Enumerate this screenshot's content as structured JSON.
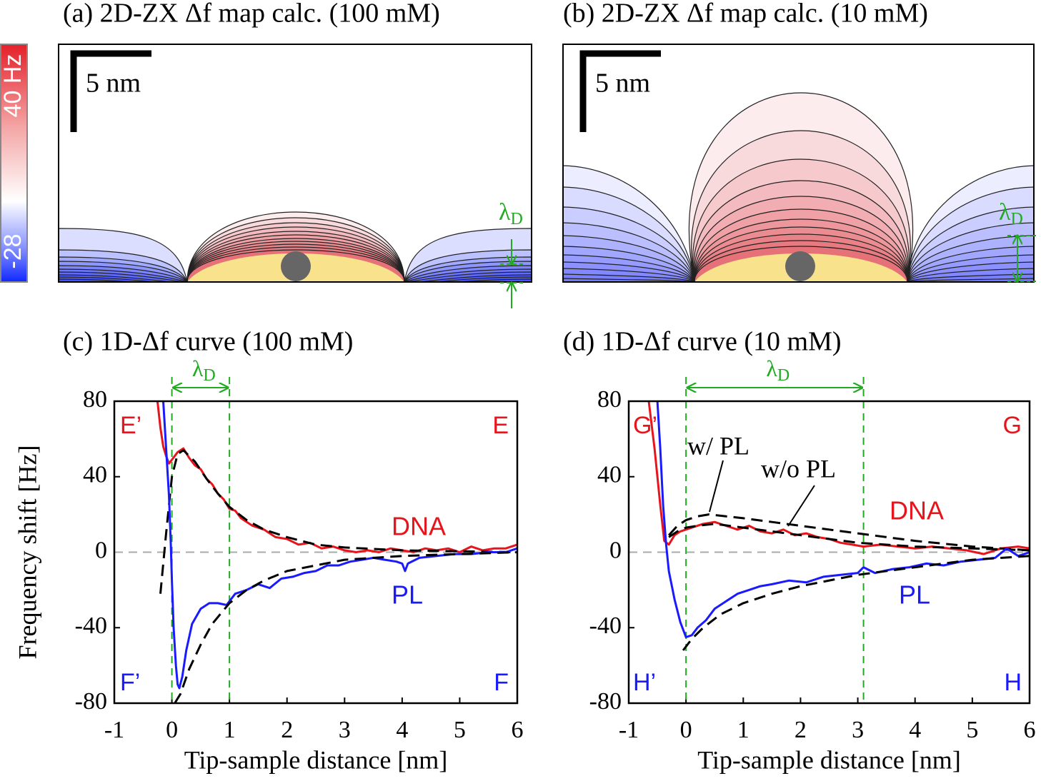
{
  "colorbar": {
    "max_label": "40 Hz",
    "min_label": "-28"
  },
  "maps": [
    {
      "title": "(a) 2D-ZX Δf map calc. (100 mM)",
      "scale_bar": "5 nm",
      "lambda_label": {
        "symbol": "λ",
        "subscript": "D"
      }
    },
    {
      "title": "(b) 2D-ZX Δf map calc. (10 mM)",
      "scale_bar": "5 nm",
      "lambda_label": {
        "symbol": "λ",
        "subscript": "D"
      }
    }
  ],
  "chart_data": [
    {
      "type": "line",
      "title": "(c) 1D-Δf curve (100 mM)",
      "x_label": "Tip-sample distance [nm]",
      "y_label": "Frequency shift [Hz]",
      "xlim": [
        -1,
        6
      ],
      "ylim": [
        -80,
        80
      ],
      "xticks": [
        -1,
        0,
        1,
        2,
        3,
        4,
        5,
        6
      ],
      "yticks": [
        -80,
        -40,
        0,
        40,
        80
      ],
      "hline": 0,
      "hline_color": "#aaaaaa",
      "vlines": [
        0,
        1
      ],
      "vline_color": "#22aa22",
      "lambda_label": {
        "symbol": "λ",
        "subscript": "D"
      },
      "annotations": [
        {
          "text": "E’",
          "color": "#e8141b"
        },
        {
          "text": "E",
          "color": "#e8141b"
        },
        {
          "text": "F’",
          "color": "#1a1aff"
        },
        {
          "text": "F",
          "color": "#1a1aff"
        }
      ],
      "series": [
        {
          "name": "DNA",
          "color": "#e8141b",
          "style": "solid",
          "x": [
            -0.25,
            -0.2,
            -0.15,
            -0.1,
            -0.05,
            0,
            0.1,
            0.2,
            0.3,
            0.4,
            0.5,
            0.6,
            0.7,
            0.8,
            0.9,
            1.0,
            1.1,
            1.2,
            1.4,
            1.6,
            1.8,
            2.0,
            2.2,
            2.4,
            2.6,
            2.8,
            3.0,
            3.2,
            3.4,
            3.6,
            3.8,
            4.0,
            4.2,
            4.4,
            4.6,
            4.8,
            5.0,
            5.2,
            5.4,
            5.6,
            5.8,
            6.0
          ],
          "values": [
            80,
            66,
            56,
            51,
            47,
            49,
            53,
            55,
            50,
            46,
            44,
            39,
            36,
            31,
            28,
            23,
            22,
            18,
            14,
            12,
            8,
            7,
            4,
            5,
            2,
            3,
            1,
            0,
            1,
            0,
            2,
            1,
            0,
            2,
            1,
            2,
            0,
            3,
            1,
            2,
            2,
            4
          ]
        },
        {
          "color": "#000000",
          "style": "dashed",
          "x": [
            -0.2,
            -0.1,
            0,
            0.1,
            0.2,
            0.4,
            0.6,
            0.8,
            1.0,
            1.3,
            1.6,
            2,
            2.5,
            3,
            4,
            5,
            6
          ],
          "values": [
            -22,
            10,
            40,
            52,
            54,
            48,
            39,
            31,
            24,
            17,
            12,
            8,
            4,
            2.5,
            1,
            0.5,
            0
          ]
        },
        {
          "name": "PL",
          "color": "#1a1aff",
          "style": "solid",
          "x": [
            -0.15,
            -0.1,
            -0.05,
            -0.02,
            0,
            0.03,
            0.07,
            0.1,
            0.13,
            0.18,
            0.25,
            0.35,
            0.5,
            0.65,
            0.8,
            0.95,
            1.1,
            1.3,
            1.5,
            1.7,
            1.9,
            2.1,
            2.3,
            2.5,
            2.7,
            2.9,
            3.1,
            3.3,
            3.5,
            3.7,
            3.9,
            4.0,
            4.05,
            4.1,
            4.3,
            4.6,
            4.9,
            5.2,
            5.5,
            5.8,
            6.0
          ],
          "values": [
            80,
            55,
            30,
            5,
            -15,
            -40,
            -60,
            -70,
            -72,
            -66,
            -52,
            -38,
            -30,
            -27,
            -27,
            -28,
            -22,
            -20,
            -17,
            -19,
            -14,
            -13,
            -11,
            -10,
            -7,
            -7,
            -5,
            -4,
            -3,
            -4,
            -5,
            -6,
            -10,
            -6,
            -3,
            -2,
            -1,
            -1,
            0,
            0,
            2
          ]
        },
        {
          "color": "#000000",
          "style": "dashed",
          "x": [
            0.05,
            0.15,
            0.3,
            0.5,
            0.7,
            1.0,
            1.3,
            1.6,
            2,
            2.5,
            3,
            4,
            5,
            6
          ],
          "values": [
            -80,
            -75,
            -62,
            -49,
            -38,
            -27,
            -20,
            -15,
            -10,
            -7,
            -4,
            -2,
            -1,
            0
          ]
        }
      ]
    },
    {
      "type": "line",
      "title": "(d) 1D-Δf curve (10 mM)",
      "x_label": "Tip-sample distance [nm]",
      "xlim": [
        -1,
        6
      ],
      "ylim": [
        -80,
        80
      ],
      "xticks": [
        -1,
        0,
        1,
        2,
        3,
        4,
        5,
        6
      ],
      "yticks": [
        -80,
        -40,
        0,
        40,
        80
      ],
      "hline": 0,
      "hline_color": "#aaaaaa",
      "vlines": [
        0,
        3.1
      ],
      "vline_color": "#22aa22",
      "lambda_label": {
        "symbol": "λ",
        "subscript": "D"
      },
      "annotations": [
        {
          "text": "G’",
          "color": "#e8141b"
        },
        {
          "text": "G",
          "color": "#e8141b"
        },
        {
          "text": "H’",
          "color": "#1a1aff"
        },
        {
          "text": "H",
          "color": "#1a1aff"
        }
      ],
      "series": [
        {
          "name": "DNA",
          "color": "#e8141b",
          "style": "solid",
          "x": [
            -0.65,
            -0.55,
            -0.45,
            -0.38,
            -0.3,
            -0.2,
            -0.1,
            0,
            0.1,
            0.3,
            0.5,
            0.7,
            0.9,
            1.1,
            1.3,
            1.5,
            1.7,
            1.9,
            2.1,
            2.3,
            2.5,
            2.7,
            2.9,
            3.1,
            3.4,
            3.7,
            4.0,
            4.3,
            4.6,
            4.9,
            5.2,
            5.5,
            5.8,
            6.0
          ],
          "values": [
            80,
            55,
            25,
            6,
            4,
            9,
            11,
            12,
            13,
            15,
            16,
            14,
            12,
            14,
            11,
            10,
            12,
            9,
            10,
            8,
            7,
            5,
            4,
            3,
            4,
            3,
            2,
            3,
            2,
            1,
            -1,
            2,
            3,
            2
          ]
        },
        {
          "name": "w/ PL",
          "color": "#000000",
          "style": "dashed",
          "x": [
            -0.3,
            -0.15,
            0,
            0.2,
            0.4,
            0.7,
            1,
            1.5,
            2,
            2.5,
            3,
            3.5,
            4,
            5,
            6
          ],
          "values": [
            9,
            14,
            17,
            19,
            20,
            19,
            18,
            16,
            14,
            12,
            10,
            8,
            6,
            3,
            1
          ]
        },
        {
          "name": "w/o PL",
          "color": "#000000",
          "style": "dashed",
          "x": [
            -0.3,
            -0.15,
            0,
            0.2,
            0.5,
            1,
            1.5,
            2,
            2.5,
            3,
            4,
            5,
            6
          ],
          "values": [
            8,
            11,
            13,
            14,
            15,
            13,
            11,
            9,
            7,
            5,
            3,
            2,
            1
          ]
        },
        {
          "name": "PL",
          "color": "#1a1aff",
          "style": "solid",
          "x": [
            -0.5,
            -0.45,
            -0.4,
            -0.35,
            -0.3,
            -0.2,
            -0.1,
            0,
            0.1,
            0.2,
            0.35,
            0.5,
            0.7,
            0.9,
            1.1,
            1.3,
            1.5,
            1.8,
            2.1,
            2.4,
            2.7,
            3.0,
            3.1,
            3.3,
            3.6,
            3.9,
            4.2,
            4.5,
            4.8,
            5.1,
            5.4,
            5.6,
            5.8,
            6.0
          ],
          "values": [
            80,
            55,
            25,
            5,
            -10,
            -25,
            -37,
            -45,
            -44,
            -40,
            -36,
            -30,
            -26,
            -22,
            -20,
            -18,
            -17,
            -15,
            -16,
            -13,
            -12,
            -11,
            -8,
            -11,
            -9,
            -8,
            -6,
            -7,
            -5,
            -4,
            -3,
            2,
            -2,
            0
          ]
        },
        {
          "color": "#000000",
          "style": "dashed",
          "x": [
            -0.05,
            0.1,
            0.3,
            0.6,
            1,
            1.5,
            2,
            3,
            4,
            5,
            6
          ],
          "values": [
            -52,
            -46,
            -40,
            -33,
            -27,
            -22,
            -18,
            -12,
            -8,
            -4,
            -2
          ]
        }
      ]
    }
  ]
}
